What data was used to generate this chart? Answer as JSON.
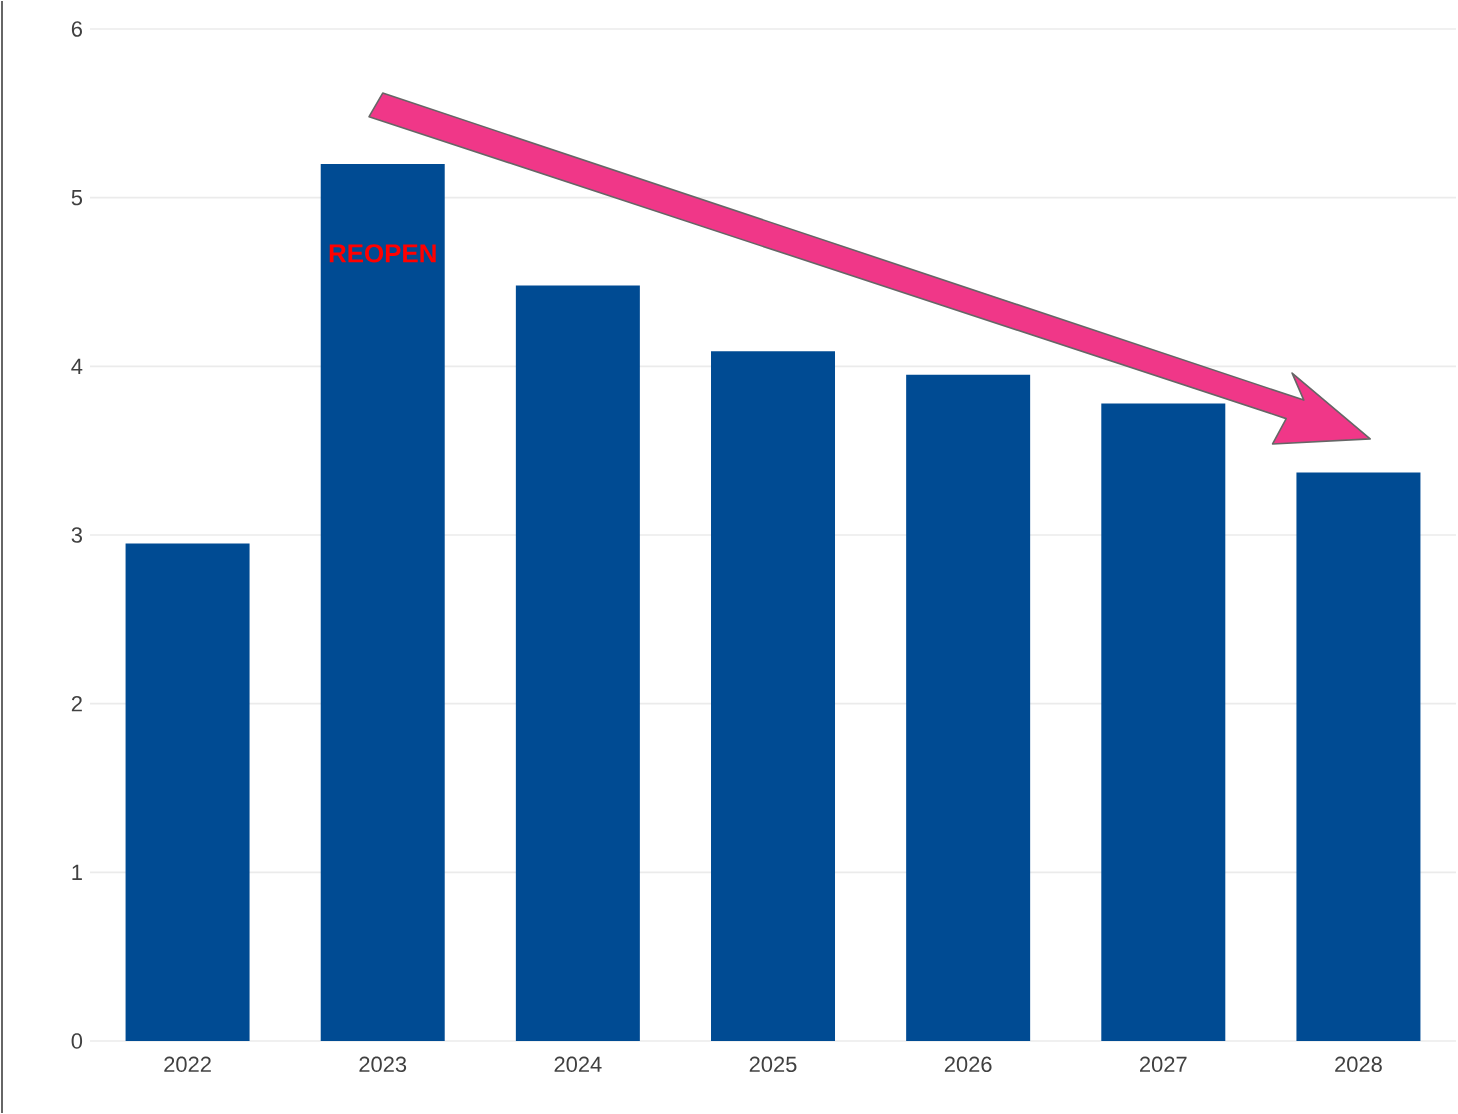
{
  "chart_data": {
    "type": "bar",
    "categories": [
      "2022",
      "2023",
      "2024",
      "2025",
      "2026",
      "2027",
      "2028"
    ],
    "values": [
      2.95,
      5.2,
      4.48,
      4.09,
      3.95,
      3.78,
      3.37
    ],
    "color": "#004b93",
    "ylim": [
      0,
      6
    ],
    "yticks": [
      0,
      1,
      2,
      3,
      4,
      5,
      6
    ],
    "grid": "y",
    "annotations": [
      "REOPEN"
    ]
  }
}
